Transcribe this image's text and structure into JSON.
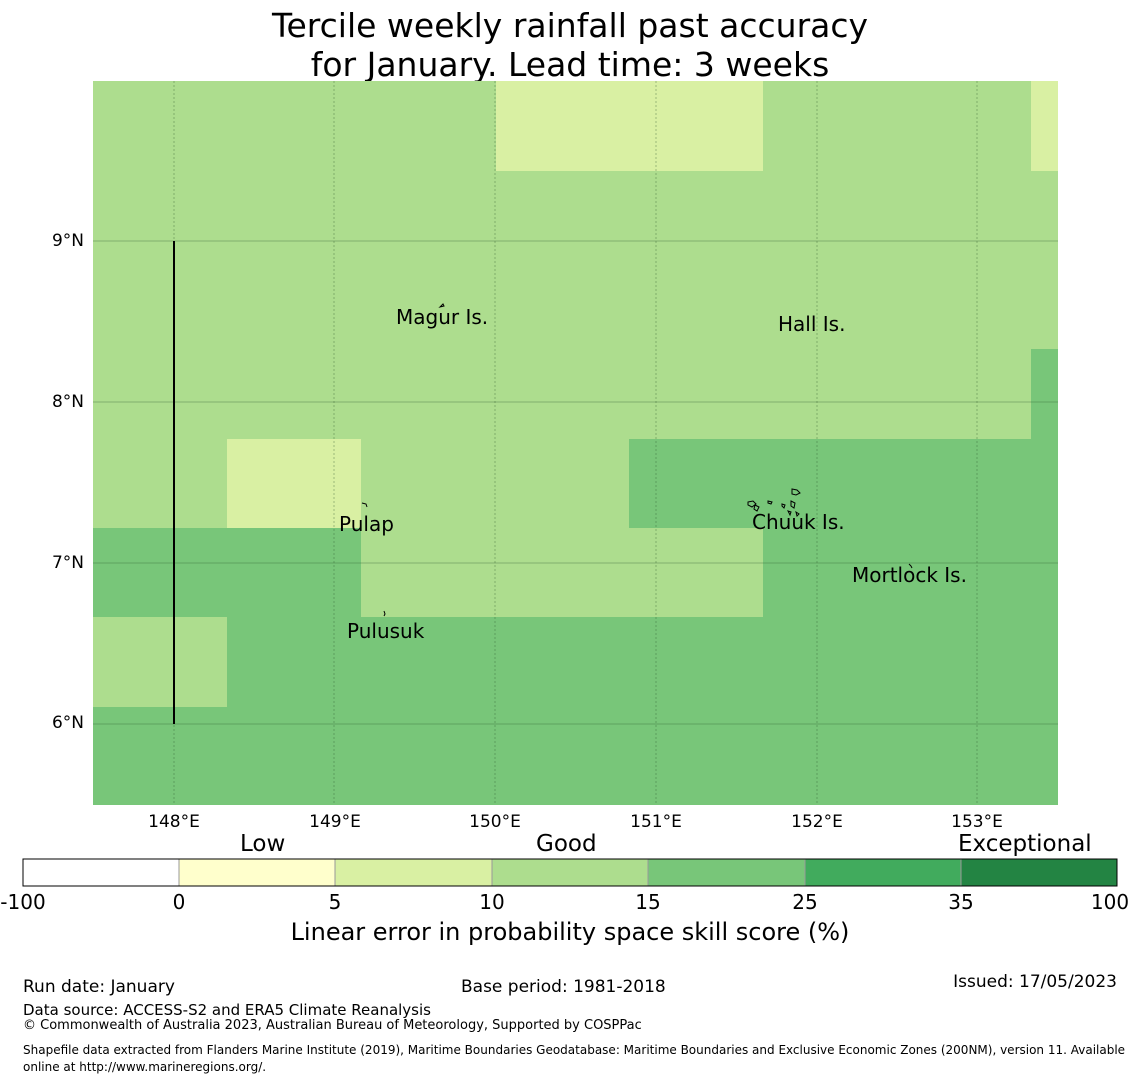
{
  "title": {
    "line1": "Tercile weekly rainfall past accuracy",
    "line2": "for January. Lead time: 3 weeks"
  },
  "map": {
    "latitude_labels": [
      "9°N",
      "8°N",
      "7°N",
      "6°N"
    ],
    "longitude_labels": [
      "148°E",
      "149°E",
      "150°E",
      "151°E",
      "152°E",
      "153°E"
    ],
    "places": [
      "Magur Is.",
      "Hall Is.",
      "Pulap",
      "Chuuk Is.",
      "Mortlock Is.",
      "Pulusuk"
    ]
  },
  "legend": {
    "tiers": [
      "Low",
      "Good",
      "Exceptional"
    ],
    "ticks": [
      "-100",
      "0",
      "5",
      "10",
      "15",
      "25",
      "35",
      "100"
    ],
    "colors": [
      "#ffffff",
      "#ffffcc",
      "#d9f0a3",
      "#addd8e",
      "#78c679",
      "#41ab5d",
      "#238443"
    ],
    "label": "Linear error in probability space skill score (%)"
  },
  "footer": {
    "run_date": "Run date: January",
    "base_period": "Base period: 1981-2018",
    "issued": "Issued: 17/05/2023",
    "data_source": "Data source: ACCESS-S2 and ERA5 Climate Reanalysis",
    "copyright": "© Commonwealth of Australia 2023, Australian Bureau of Meteorology, Supported by COSPPac",
    "shapefile": "Shapefile data extracted from Flanders Marine Institute (2019), Maritime Boundaries Geodatabase: Maritime Boundaries and Exclusive Economic Zones (200NM), version 11. Available online at http://www.marineregions.org/."
  }
}
